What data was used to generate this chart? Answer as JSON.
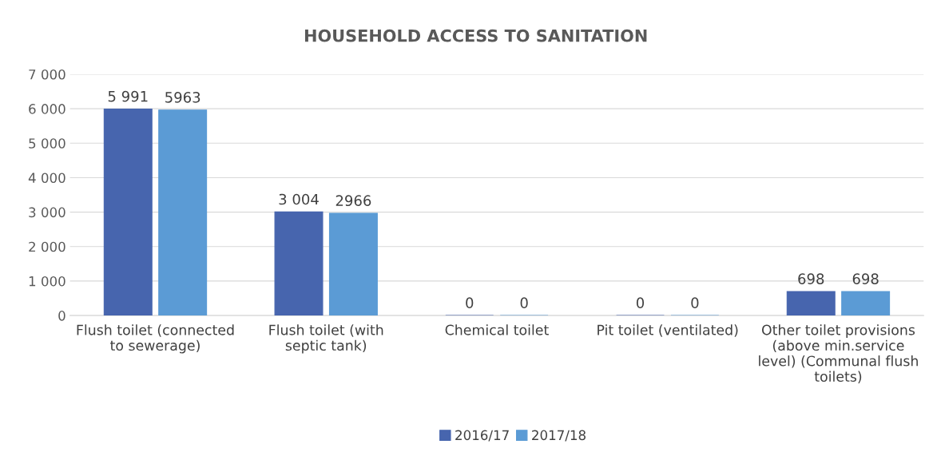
{
  "chart_data": {
    "type": "bar",
    "title": "HOUSEHOLD ACCESS TO SANITATION",
    "categories": [
      "Flush toilet (connected\nto sewerage)",
      "Flush toilet (with\nseptic tank)",
      "Chemical toilet",
      "Pit toilet (ventilated)",
      "Other toilet provisions\n(above min.service\nlevel) (Communal flush\ntoilets)"
    ],
    "series": [
      {
        "name": "2016/17",
        "color": "#4765ae",
        "values": [
          5991,
          3004,
          0,
          0,
          698
        ],
        "value_labels": [
          "5 991",
          "3 004",
          "0",
          "0",
          "698"
        ]
      },
      {
        "name": "2017/18",
        "color": "#5b9bd5",
        "values": [
          5963,
          2966,
          0,
          0,
          698
        ],
        "value_labels": [
          "5963",
          "2966",
          "0",
          "0",
          "698"
        ]
      }
    ],
    "ylim": [
      0,
      7000
    ],
    "yticks": [
      {
        "value": 0,
        "label": "0"
      },
      {
        "value": 1000,
        "label": "1 000"
      },
      {
        "value": 2000,
        "label": "2 000"
      },
      {
        "value": 3000,
        "label": "3 000"
      },
      {
        "value": 4000,
        "label": "4 000"
      },
      {
        "value": 5000,
        "label": "5 000"
      },
      {
        "value": 6000,
        "label": "6 000"
      },
      {
        "value": 7000,
        "label": "7 000"
      }
    ],
    "grid": "y",
    "legend": "bottom"
  }
}
